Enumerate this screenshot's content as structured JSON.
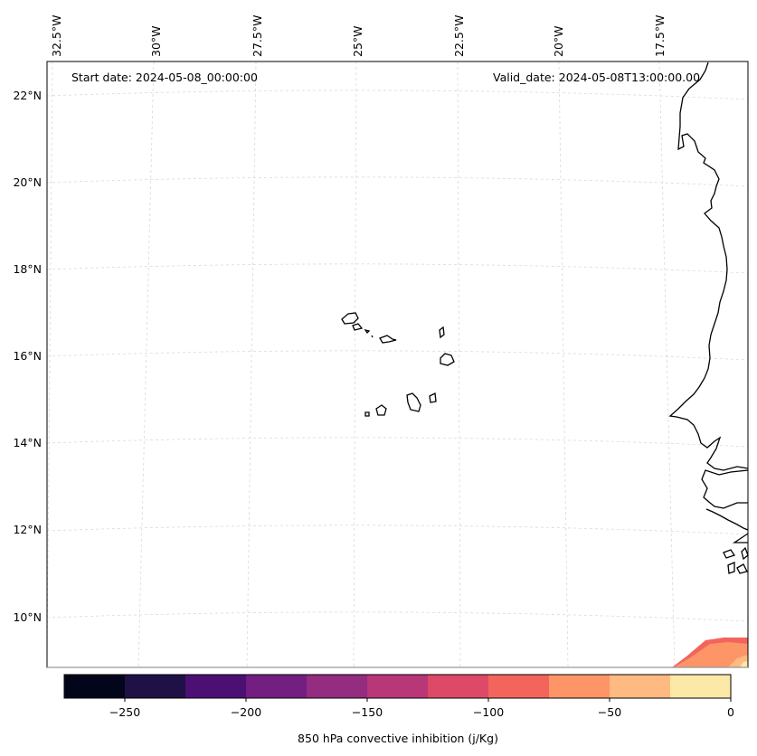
{
  "map": {
    "start_date": "Start date: 2024-05-08_00:00:00",
    "valid_date": "Valid_date: 2024-05-08T13:00:00.00",
    "longitude_labels": [
      "32.5°W",
      "30°W",
      "27.5°W",
      "25°W",
      "22.5°W",
      "20°W",
      "17.5°W"
    ],
    "latitude_labels": [
      "22°N",
      "20°N",
      "18°N",
      "16°N",
      "14°N",
      "12°N",
      "10°N"
    ],
    "gridlines": "dashed light grey",
    "coastline_color": "#000000"
  },
  "colorbar": {
    "label": "850 hPa convective inhibition (j/Kg)",
    "ticks": [
      "−250",
      "−200",
      "−150",
      "−100",
      "−50",
      "0"
    ],
    "range": [
      -275,
      0
    ],
    "colors": [
      "#03051a",
      "#1f1146",
      "#4c0f74",
      "#721f81",
      "#942c80",
      "#b73779",
      "#de4968",
      "#f3655c",
      "#fd9567",
      "#feba80",
      "#fde9a7"
    ]
  }
}
